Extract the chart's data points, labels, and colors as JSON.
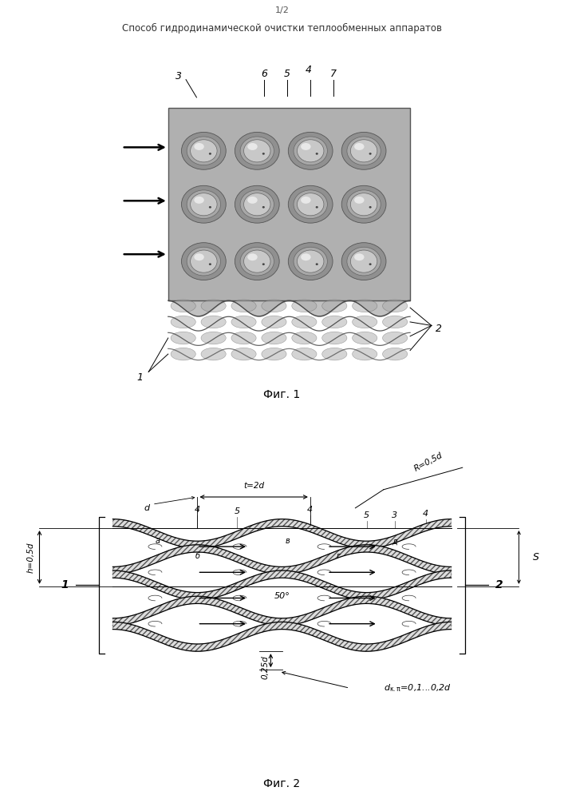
{
  "page_title_line1": "1/2",
  "page_title_line2": "Способ гидродинамической очистки теплообменных аппаратов",
  "fig1_caption": "Фиг. 1",
  "fig2_caption": "Фиг. 2",
  "bg_color": "#ffffff"
}
